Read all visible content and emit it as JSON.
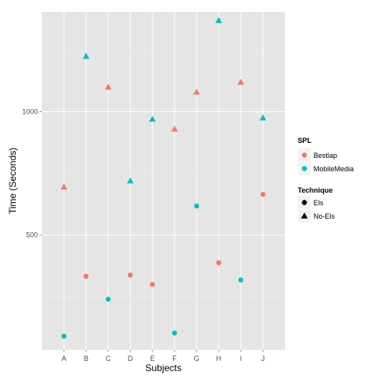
{
  "chart_data": {
    "type": "scatter",
    "xlabel": "Subjects",
    "ylabel": "Time (Seconds)",
    "categories": [
      "A",
      "B",
      "C",
      "D",
      "E",
      "F",
      "G",
      "H",
      "I",
      "J"
    ],
    "ylim": [
      35,
      1405
    ],
    "y_ticks": [
      500,
      1000
    ],
    "grid": true,
    "legend_position": "right",
    "color_legend": {
      "title": "SPL",
      "entries": [
        {
          "label": "Bestlap",
          "color": "#F8766D"
        },
        {
          "label": "MobileMedia",
          "color": "#00BFC4"
        }
      ]
    },
    "shape_legend": {
      "title": "Technique",
      "entries": [
        {
          "label": "Els",
          "shape": "circle"
        },
        {
          "label": "No-Els",
          "shape": "triangle"
        }
      ]
    },
    "points": [
      {
        "x": "A",
        "y": 90,
        "spl": "MobileMedia",
        "technique": "Els"
      },
      {
        "x": "A",
        "y": 695,
        "spl": "Bestlap",
        "technique": "No-Els"
      },
      {
        "x": "B",
        "y": 1225,
        "spl": "MobileMedia",
        "technique": "No-Els"
      },
      {
        "x": "B",
        "y": 333,
        "spl": "Bestlap",
        "technique": "Els"
      },
      {
        "x": "C",
        "y": 1100,
        "spl": "Bestlap",
        "technique": "No-Els"
      },
      {
        "x": "C",
        "y": 240,
        "spl": "MobileMedia",
        "technique": "Els"
      },
      {
        "x": "D",
        "y": 720,
        "spl": "MobileMedia",
        "technique": "No-Els"
      },
      {
        "x": "D",
        "y": 338,
        "spl": "Bestlap",
        "technique": "Els"
      },
      {
        "x": "E",
        "y": 970,
        "spl": "MobileMedia",
        "technique": "No-Els"
      },
      {
        "x": "E",
        "y": 300,
        "spl": "Bestlap",
        "technique": "Els"
      },
      {
        "x": "F",
        "y": 930,
        "spl": "Bestlap",
        "technique": "No-Els"
      },
      {
        "x": "F",
        "y": 103,
        "spl": "MobileMedia",
        "technique": "Els"
      },
      {
        "x": "G",
        "y": 1080,
        "spl": "Bestlap",
        "technique": "No-Els"
      },
      {
        "x": "G",
        "y": 618,
        "spl": "MobileMedia",
        "technique": "Els"
      },
      {
        "x": "H",
        "y": 1370,
        "spl": "MobileMedia",
        "technique": "No-Els"
      },
      {
        "x": "H",
        "y": 388,
        "spl": "Bestlap",
        "technique": "Els"
      },
      {
        "x": "I",
        "y": 1120,
        "spl": "Bestlap",
        "technique": "No-Els"
      },
      {
        "x": "I",
        "y": 318,
        "spl": "MobileMedia",
        "technique": "Els"
      },
      {
        "x": "J",
        "y": 975,
        "spl": "MobileMedia",
        "technique": "No-Els"
      },
      {
        "x": "J",
        "y": 665,
        "spl": "Bestlap",
        "technique": "Els"
      }
    ]
  }
}
